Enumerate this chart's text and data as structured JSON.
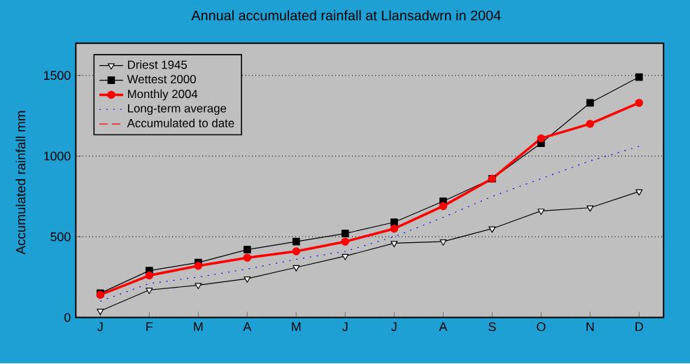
{
  "chart_data": {
    "type": "line",
    "title": "Annual accumulated rainfall at Llansadwrn in 2004",
    "ylabel": "Accumulated rainfall mm",
    "categories": [
      "J",
      "F",
      "M",
      "A",
      "M",
      "J",
      "J",
      "A",
      "S",
      "O",
      "N",
      "D"
    ],
    "ylim": [
      0,
      1700
    ],
    "yticks": [
      0,
      500,
      1000,
      1500
    ],
    "grid": "y",
    "legend": "top left",
    "series": [
      {
        "name": "Driest 1945",
        "color": "#000000",
        "marker": "triangle",
        "line_style": "solid",
        "values": [
          40,
          170,
          200,
          240,
          310,
          380,
          460,
          470,
          550,
          660,
          680,
          780
        ]
      },
      {
        "name": "Wettest 2000",
        "color": "#000000",
        "marker": "square",
        "line_style": "solid",
        "values": [
          150,
          290,
          340,
          420,
          470,
          520,
          590,
          720,
          860,
          1080,
          1330,
          1490
        ]
      },
      {
        "name": "Monthly 2004",
        "color": "#ff0000",
        "marker": "circle",
        "line_style": "solid",
        "values": [
          140,
          260,
          320,
          370,
          410,
          470,
          550,
          690,
          860,
          1110,
          1200,
          1330
        ]
      },
      {
        "name": "Long-term average",
        "color": "#0000ff",
        "marker": "none",
        "line_style": "dotted",
        "values": [
          100,
          210,
          250,
          300,
          360,
          410,
          500,
          620,
          750,
          860,
          970,
          1060
        ]
      },
      {
        "name": "Accumulated to date",
        "color": "#ff0000",
        "marker": "none",
        "line_style": "dashed",
        "values": [
          null,
          null,
          null,
          null,
          null,
          null,
          null,
          null,
          null,
          null,
          null,
          null
        ]
      }
    ]
  }
}
